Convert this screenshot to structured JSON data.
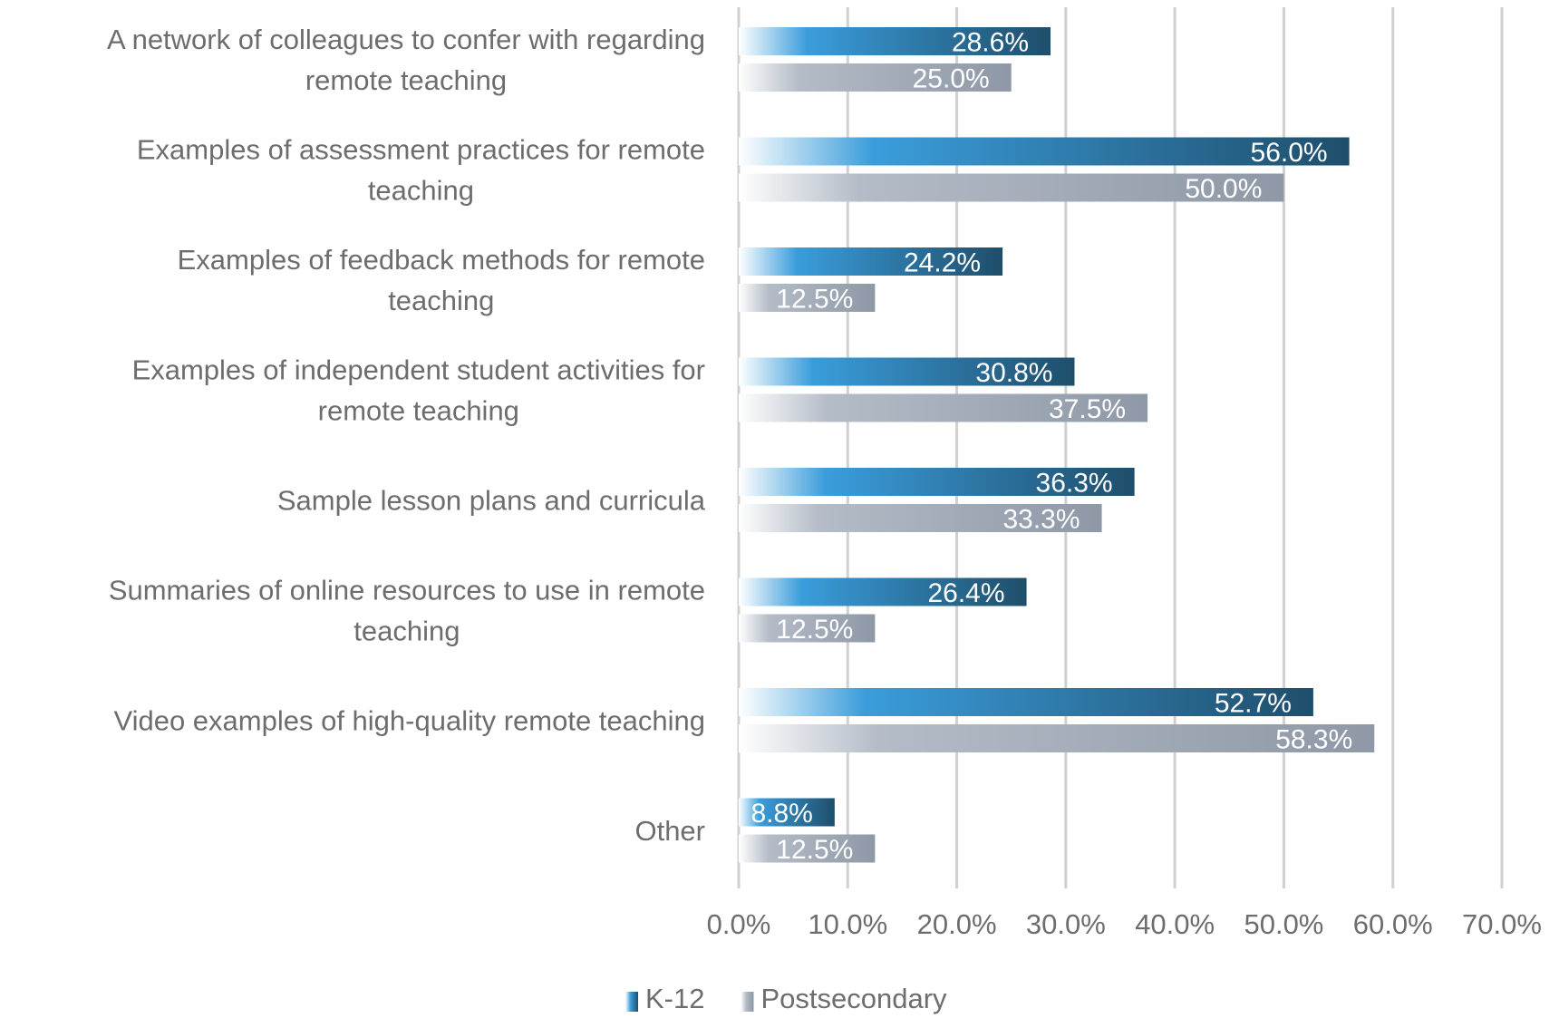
{
  "chart_data": {
    "type": "bar",
    "orientation": "horizontal",
    "categories": [
      [
        "A network of colleagues to confer with regarding",
        "remote teaching"
      ],
      [
        "Examples of assessment practices for remote",
        "teaching"
      ],
      [
        "Examples of feedback methods for remote",
        "teaching"
      ],
      [
        "Examples of independent student activities for",
        "remote teaching"
      ],
      [
        "Sample lesson plans and curricula"
      ],
      [
        "Summaries of online resources to use in remote",
        "teaching"
      ],
      [
        "Video examples of high-quality remote teaching"
      ],
      [
        "Other"
      ]
    ],
    "series": [
      {
        "name": "K-12",
        "values": [
          28.6,
          56.0,
          24.2,
          30.8,
          36.3,
          26.4,
          52.7,
          8.8
        ],
        "labels": [
          "28.6%",
          "56.0%",
          "24.2%",
          "30.8%",
          "36.3%",
          "26.4%",
          "52.7%",
          "8.8%"
        ],
        "colors": {
          "start": "#ffffff",
          "mid": "#3a9ddb",
          "end": "#1f4e6b"
        }
      },
      {
        "name": "Postsecondary",
        "values": [
          25.0,
          50.0,
          12.5,
          37.5,
          33.3,
          12.5,
          58.3,
          12.5
        ],
        "labels": [
          "25.0%",
          "50.0%",
          "12.5%",
          "37.5%",
          "33.3%",
          "12.5%",
          "58.3%",
          "12.5%"
        ],
        "colors": {
          "start": "#ffffff",
          "mid": "#b4bcc7",
          "end": "#8e98a6"
        }
      }
    ],
    "xlim": [
      0,
      70
    ],
    "xticks": [
      0,
      10,
      20,
      30,
      40,
      50,
      60,
      70
    ],
    "xtick_labels": [
      "0.0%",
      "10.0%",
      "20.0%",
      "30.0%",
      "40.0%",
      "50.0%",
      "60.0%",
      "70.0%"
    ],
    "grid": "vertical",
    "legend": "bottom",
    "title": "",
    "xlabel": "",
    "ylabel": ""
  }
}
